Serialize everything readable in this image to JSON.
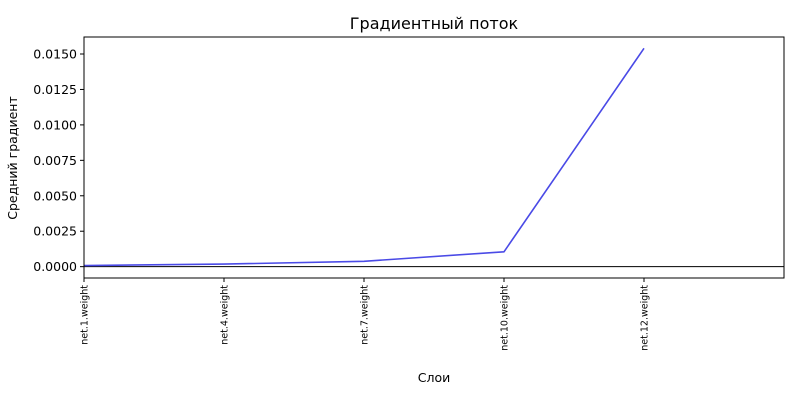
{
  "chart_data": {
    "type": "line",
    "title": "Градиентный поток",
    "xlabel": "Слои",
    "ylabel": "Средний градиент",
    "categories": [
      "net.1.weight",
      "net.4.weight",
      "net.7.weight",
      "net.10.weight",
      "net.12.weight"
    ],
    "series": [
      {
        "values": [
          8e-05,
          0.00018,
          0.00038,
          0.00105,
          0.0154
        ],
        "color": "#4a4ae6"
      }
    ],
    "ylim": [
      -0.0008,
      0.0162
    ],
    "yticks": [
      0.0,
      0.0025,
      0.005,
      0.0075,
      0.01,
      0.0125,
      0.015
    ],
    "ytick_labels": [
      "0.0000",
      "0.0025",
      "0.0050",
      "0.0075",
      "0.0100",
      "0.0125",
      "0.0150"
    ],
    "x_range": [
      0,
      5
    ],
    "hline": 0,
    "grid": false,
    "legend": "none"
  }
}
